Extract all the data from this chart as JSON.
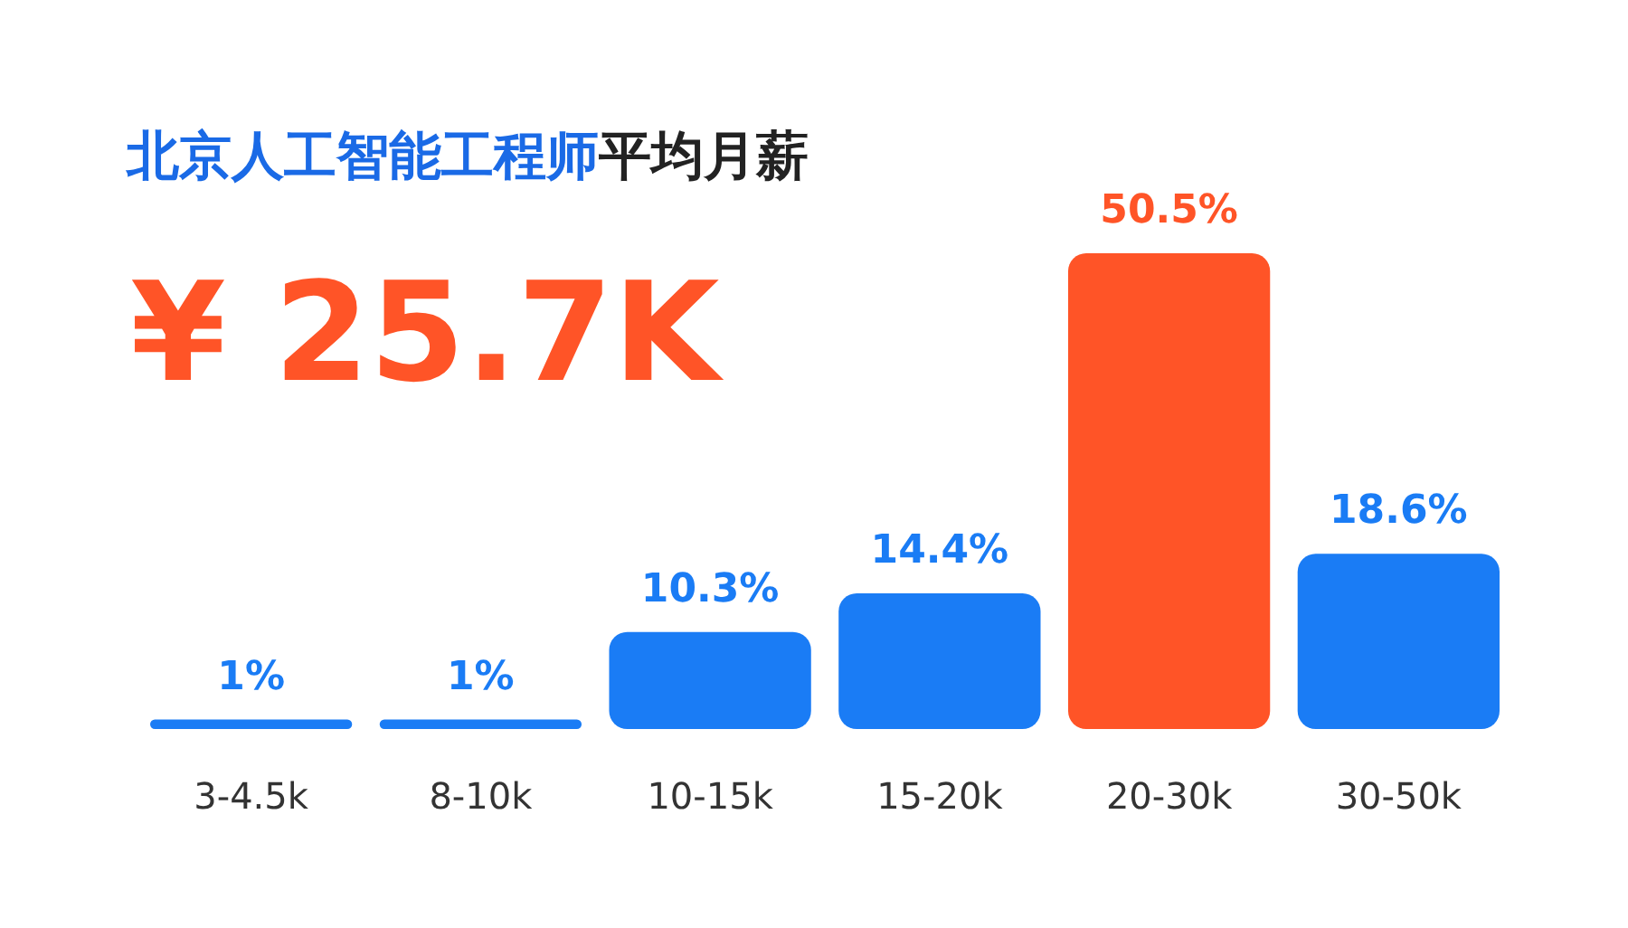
{
  "chart_data": {
    "type": "bar",
    "title": "北京人工智能工程师平均月薪",
    "subtitle": "¥ 25.7K",
    "categories": [
      "3-4.5k",
      "8-10k",
      "10-15k",
      "15-20k",
      "20-30k",
      "30-50k"
    ],
    "values": [
      1,
      1,
      10.3,
      14.4,
      50.5,
      18.6
    ],
    "value_labels": [
      "1%",
      "1%",
      "10.3%",
      "14.4%",
      "50.5%",
      "18.6%"
    ],
    "colors": [
      "#1a7cf5",
      "#1a7cf5",
      "#1a7cf5",
      "#1a7cf5",
      "#ff5427",
      "#1a7cf5"
    ],
    "tick_labels": "x"
  }
}
